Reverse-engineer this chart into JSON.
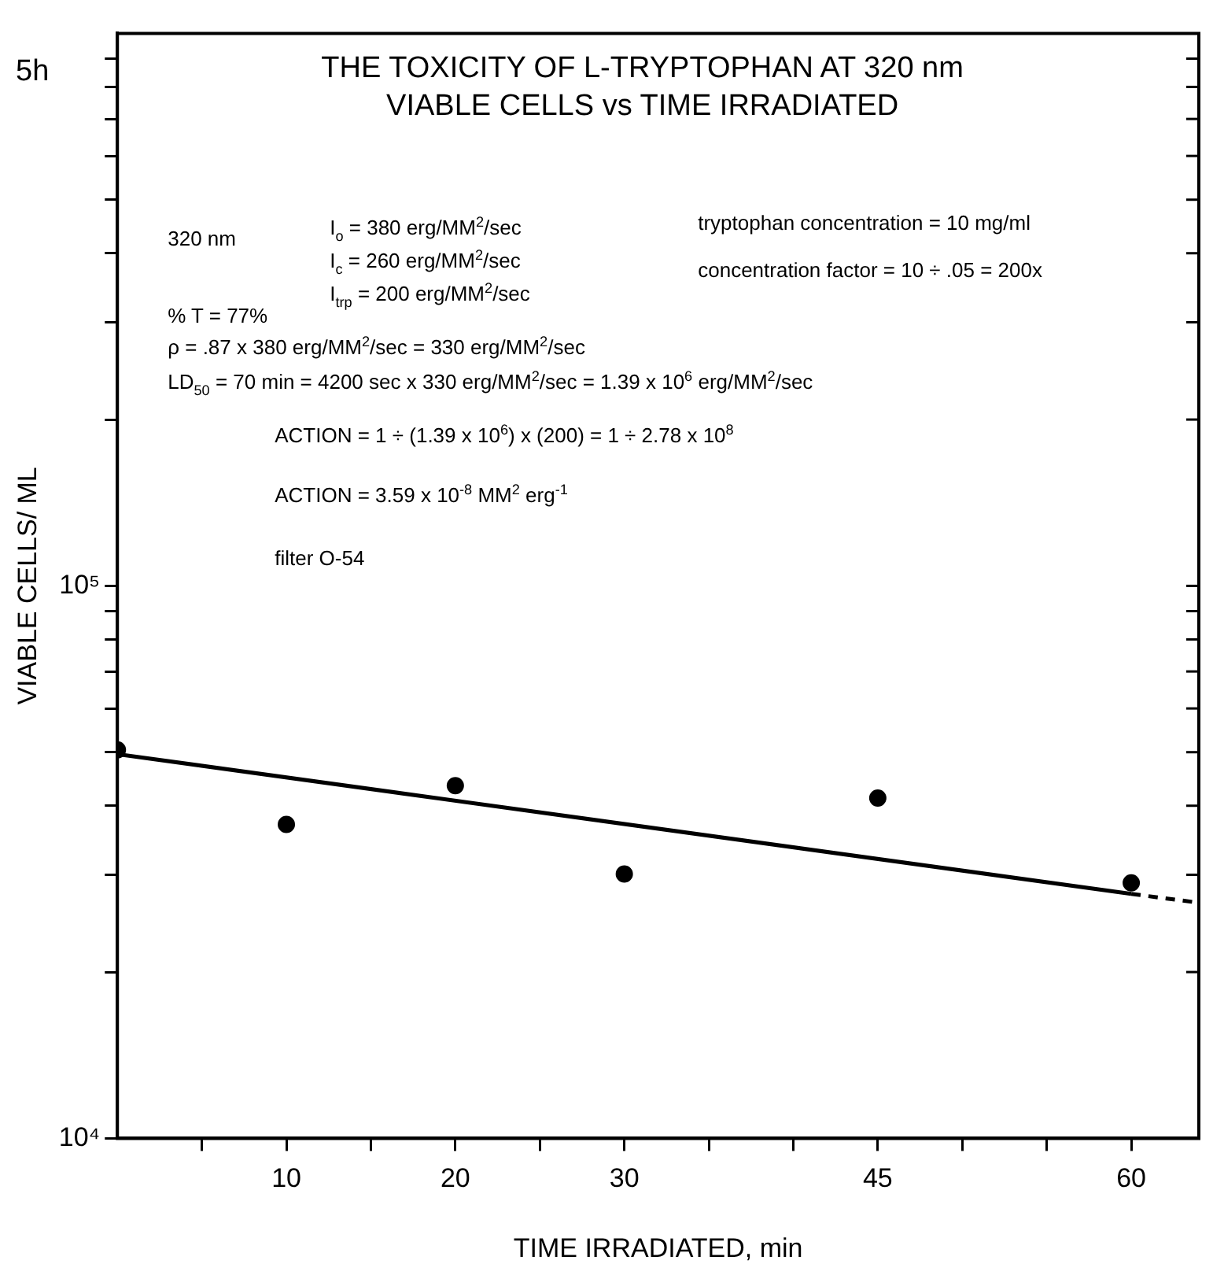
{
  "chart_data": {
    "type": "scatter",
    "title": "THE TOXICITY OF L-TRYPTOPHAN AT 320 nm",
    "subtitle": "VIABLE CELLS vs TIME IRRADIATED",
    "xlabel": "TIME IRRADIATED, min",
    "ylabel": "VIABLE CELLS/ ML",
    "log": "y",
    "legend": false,
    "xlim": [
      0,
      64
    ],
    "xticks": [
      {
        "value": 5,
        "label": null
      },
      10,
      {
        "value": 15,
        "label": null
      },
      20,
      {
        "value": 25,
        "label": null
      },
      30,
      {
        "value": 35,
        "label": null
      },
      {
        "value": 40,
        "label": null
      },
      45,
      {
        "value": 50,
        "label": null
      },
      {
        "value": 55,
        "label": null
      },
      60
    ],
    "ylim": [
      10000,
      1000000
    ],
    "yticks": [
      {
        "value": 10000,
        "label": "10⁴"
      },
      {
        "value": 20000,
        "label": null
      },
      {
        "value": 30000,
        "label": null
      },
      {
        "value": 40000,
        "label": null
      },
      {
        "value": 50000,
        "label": null
      },
      {
        "value": 60000,
        "label": null
      },
      {
        "value": 70000,
        "label": null
      },
      {
        "value": 80000,
        "label": null
      },
      {
        "value": 90000,
        "label": null
      },
      {
        "value": 100000,
        "label": "10⁵"
      },
      {
        "value": 200000,
        "label": null
      },
      {
        "value": 300000,
        "label": null
      },
      {
        "value": 400000,
        "label": null
      },
      {
        "value": 500000,
        "label": null
      },
      {
        "value": 600000,
        "label": null
      },
      {
        "value": 700000,
        "label": null
      },
      {
        "value": 800000,
        "label": null
      },
      {
        "value": 900000,
        "label": null
      }
    ],
    "series": [
      {
        "type": "scatter",
        "color": "#000000",
        "marker": "circle",
        "x": [
          0,
          10,
          20,
          30,
          45,
          60
        ],
        "values": [
          50500,
          37000,
          43500,
          30100,
          41300,
          29000
        ]
      },
      {
        "type": "line",
        "color": "#000000",
        "marker": "none",
        "line_style": "solid",
        "x": [
          0,
          60
        ],
        "values": [
          49600,
          27700
        ]
      },
      {
        "type": "line",
        "color": "#000000",
        "marker": "none",
        "line_style": "dashed",
        "x": [
          60,
          64
        ],
        "values": [
          27700,
          26700
        ]
      }
    ],
    "annotations": [
      "5h",
      "320 nm",
      "I$_{o}$ = 380 erg/MM$^{2}$/sec",
      "I$_{c}$ = 260 erg/MM$^{2}$/sec",
      "I$_{trp}$ = 200 erg/MM$^{2}$/sec",
      "tryptophan concentration = 10 mg/ml",
      "concentration factor = 10 ÷ .05 = 200x",
      "% T = 77%",
      "ρ = .87 x 380 erg/MM$^{2}$/sec = 330 erg/MM$^{2}$/sec",
      "LD$_{50}$ = 70 min = 4200 sec x 330 erg/MM$^{2}$/sec = 1.39 x 10$^{6}$ erg/MM$^{2}$/sec",
      "ACTION = 1 ÷ (1.39 x 10$^{6}$) x (200) = 1 ÷ 2.78 x 10$^{8}$",
      "ACTION = 3.59 x 10$^{-8}$ MM$^{2}$ erg$^{-1}$",
      "filter O-54"
    ]
  }
}
